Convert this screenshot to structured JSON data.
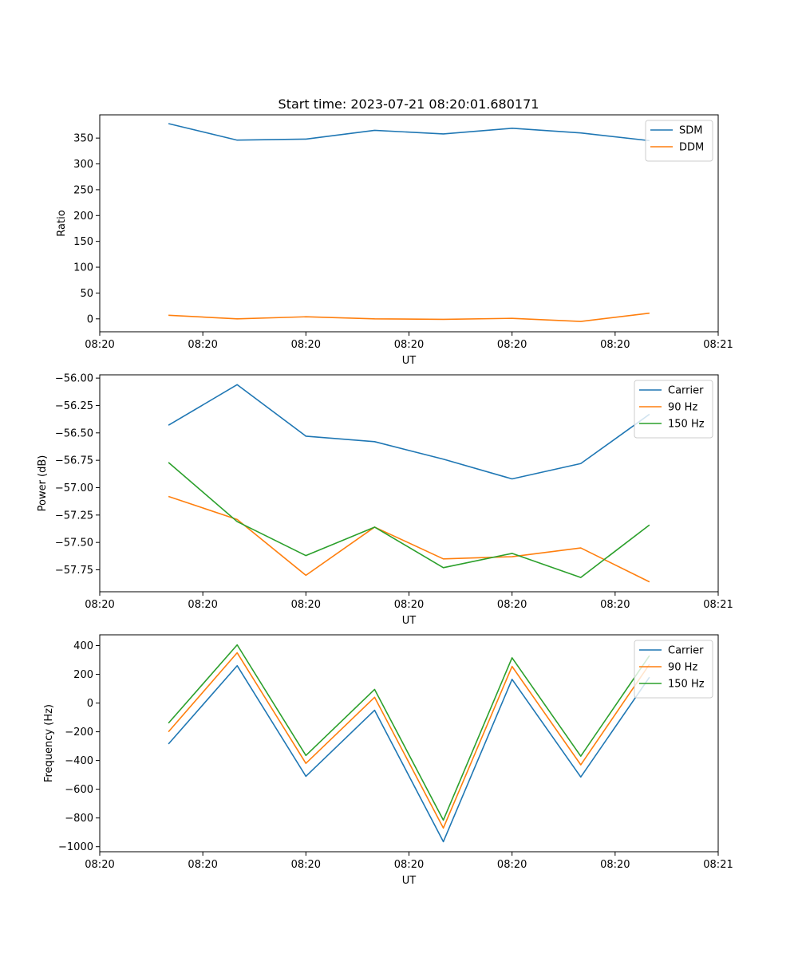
{
  "title": "Start time: 2023-07-21 08:20:01.680171",
  "chart_data": [
    {
      "type": "line",
      "ylabel": "Ratio",
      "xlabel": "UT",
      "x": [
        1,
        2,
        3,
        4,
        5,
        6,
        7,
        8
      ],
      "xlim": [
        0,
        9
      ],
      "xticks": [
        0,
        1.5,
        3,
        4.5,
        6,
        7.5,
        9
      ],
      "xtick_labels": [
        "08:20",
        "08:20",
        "08:20",
        "08:20",
        "08:20",
        "08:20",
        "08:21"
      ],
      "ylim": [
        -25,
        395
      ],
      "yticks": [
        0,
        50,
        100,
        150,
        200,
        250,
        300,
        350
      ],
      "ytick_labels": [
        "0",
        "50",
        "100",
        "150",
        "200",
        "250",
        "300",
        "350"
      ],
      "legend": "top-right",
      "series": [
        {
          "name": "SDM",
          "color": "#1f77b4",
          "values": [
            378,
            346,
            348,
            365,
            358,
            369,
            360,
            345
          ]
        },
        {
          "name": "DDM",
          "color": "#ff7f0e",
          "values": [
            7,
            0,
            4,
            0,
            -1,
            1,
            -5,
            11
          ]
        }
      ]
    },
    {
      "type": "line",
      "ylabel": "Power (dB)",
      "xlabel": "UT",
      "x": [
        1,
        2,
        3,
        4,
        5,
        6,
        7,
        8
      ],
      "xlim": [
        0,
        9
      ],
      "xticks": [
        0,
        1.5,
        3,
        4.5,
        6,
        7.5,
        9
      ],
      "xtick_labels": [
        "08:20",
        "08:20",
        "08:20",
        "08:20",
        "08:20",
        "08:20",
        "08:21"
      ],
      "ylim": [
        -57.95,
        -55.97
      ],
      "yticks": [
        -56.0,
        -56.25,
        -56.5,
        -56.75,
        -57.0,
        -57.25,
        -57.5,
        -57.75
      ],
      "ytick_labels": [
        "−56.00",
        "−56.25",
        "−56.50",
        "−56.75",
        "−57.00",
        "−57.25",
        "−57.50",
        "−57.75"
      ],
      "legend": "top-right",
      "series": [
        {
          "name": "Carrier",
          "color": "#1f77b4",
          "values": [
            -56.43,
            -56.06,
            -56.53,
            -56.58,
            -56.74,
            -56.92,
            -56.78,
            -56.33
          ]
        },
        {
          "name": "90 Hz",
          "color": "#ff7f0e",
          "values": [
            -57.08,
            -57.29,
            -57.8,
            -57.36,
            -57.65,
            -57.63,
            -57.55,
            -57.86
          ]
        },
        {
          "name": "150 Hz",
          "color": "#2ca02c",
          "values": [
            -56.77,
            -57.31,
            -57.62,
            -57.36,
            -57.73,
            -57.6,
            -57.82,
            -57.34
          ]
        }
      ]
    },
    {
      "type": "line",
      "ylabel": "Frequency (Hz)",
      "xlabel": "UT",
      "x": [
        1,
        2,
        3,
        4,
        5,
        6,
        7,
        8
      ],
      "xlim": [
        0,
        9
      ],
      "xticks": [
        0,
        1.5,
        3,
        4.5,
        6,
        7.5,
        9
      ],
      "xtick_labels": [
        "08:20",
        "08:20",
        "08:20",
        "08:20",
        "08:20",
        "08:20",
        "08:21"
      ],
      "ylim": [
        -1035,
        475
      ],
      "yticks": [
        400,
        200,
        0,
        -200,
        -400,
        -600,
        -800,
        -1000
      ],
      "ytick_labels": [
        "400",
        "200",
        "0",
        "−200",
        "−400",
        "−600",
        "−800",
        "−1000"
      ],
      "legend": "top-right",
      "series": [
        {
          "name": "Carrier",
          "color": "#1f77b4",
          "values": [
            -285,
            260,
            -510,
            -50,
            -965,
            165,
            -515,
            180
          ]
        },
        {
          "name": "90 Hz",
          "color": "#ff7f0e",
          "values": [
            -200,
            350,
            -420,
            40,
            -870,
            255,
            -430,
            270
          ]
        },
        {
          "name": "150 Hz",
          "color": "#2ca02c",
          "values": [
            -140,
            405,
            -365,
            95,
            -815,
            315,
            -370,
            330
          ]
        }
      ]
    }
  ]
}
